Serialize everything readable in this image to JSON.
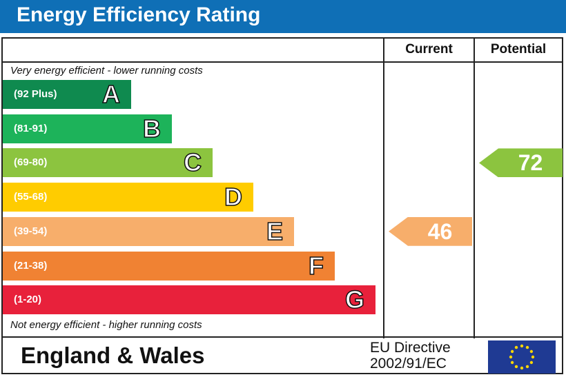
{
  "title": "Energy Efficiency Rating",
  "columns": {
    "current": "Current",
    "potential": "Potential"
  },
  "top_note": "Very energy efficient - lower running costs",
  "bottom_note": "Not energy efficient - higher running costs",
  "chart_data": {
    "type": "bar",
    "categories": [
      "A",
      "B",
      "C",
      "D",
      "E",
      "F",
      "G"
    ],
    "bands": [
      {
        "letter": "A",
        "range": "(92 Plus)",
        "color": "#0f8a4f"
      },
      {
        "letter": "B",
        "range": "(81-91)",
        "color": "#1db35a"
      },
      {
        "letter": "C",
        "range": "(69-80)",
        "color": "#8cc43f"
      },
      {
        "letter": "D",
        "range": "(55-68)",
        "color": "#ffcc00"
      },
      {
        "letter": "E",
        "range": "(39-54)",
        "color": "#f7ae6b"
      },
      {
        "letter": "F",
        "range": "(21-38)",
        "color": "#f08233"
      },
      {
        "letter": "G",
        "range": "(1-20)",
        "color": "#e8213b"
      }
    ],
    "current": {
      "value": 46,
      "band": "E",
      "color": "#f7ae6b"
    },
    "potential": {
      "value": 72,
      "band": "C",
      "color": "#8cc43f"
    }
  },
  "footer": {
    "country": "England & Wales",
    "directive_line1": "EU Directive",
    "directive_line2": "2002/91/EC"
  },
  "icons": {
    "flag": "eu-flag-icon"
  }
}
